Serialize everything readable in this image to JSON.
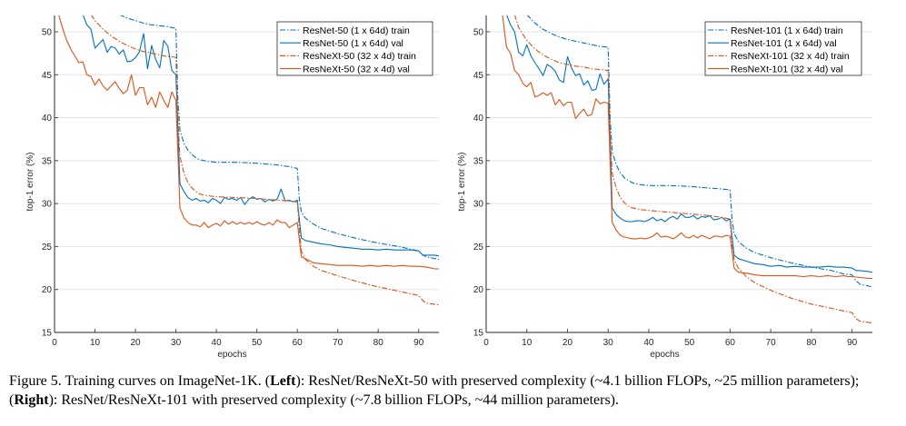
{
  "chart_data": [
    {
      "type": "line",
      "panel": "left",
      "xlabel": "epochs",
      "ylabel": "top-1 error (%)",
      "xlim": [
        0,
        95
      ],
      "ylim": [
        15,
        52
      ],
      "xticks": [
        0,
        10,
        20,
        30,
        40,
        50,
        60,
        70,
        80,
        90
      ],
      "yticks": [
        15,
        20,
        25,
        30,
        35,
        40,
        45,
        50
      ],
      "grid": "horizontal",
      "legend_position": "top-right",
      "series": [
        {
          "name": "ResNet-50 (1 x 64d) train",
          "color": "#0072BD",
          "style": "dashdot",
          "x": [
            16,
            18,
            20,
            22,
            24,
            26,
            28,
            29,
            30,
            30.5,
            31,
            32,
            33,
            34,
            35,
            36,
            38,
            40,
            45,
            50,
            55,
            58,
            59,
            60,
            60.5,
            61,
            62,
            64,
            66,
            70,
            75,
            80,
            85,
            88,
            90,
            91,
            92,
            95
          ],
          "y": [
            52.0,
            51.6,
            51.3,
            51.0,
            50.8,
            50.7,
            50.6,
            50.5,
            50.4,
            42.0,
            38.5,
            37.0,
            36.2,
            35.7,
            35.3,
            35.1,
            34.9,
            34.8,
            34.8,
            34.7,
            34.5,
            34.3,
            34.2,
            34.1,
            30.5,
            29.0,
            28.3,
            27.6,
            27.1,
            26.5,
            25.9,
            25.4,
            25.0,
            24.7,
            24.5,
            24.0,
            23.8,
            23.5
          ]
        },
        {
          "name": "ResNet-50 (1 x 64d) val",
          "color": "#0072BD",
          "style": "solid",
          "x": [
            7,
            8,
            9,
            10,
            11,
            12,
            13,
            14,
            15,
            16,
            17,
            18,
            19,
            20,
            21,
            22,
            23,
            24,
            25,
            26,
            27,
            28,
            29,
            30,
            31,
            32,
            33,
            34,
            35,
            36,
            37,
            38,
            39,
            40,
            41,
            42,
            43,
            44,
            45,
            46,
            47,
            48,
            49,
            50,
            51,
            52,
            53,
            54,
            55,
            56,
            57,
            58,
            59,
            60,
            61,
            62,
            64,
            66,
            68,
            70,
            72,
            74,
            76,
            78,
            80,
            82,
            84,
            86,
            88,
            90,
            91,
            92,
            94,
            95
          ],
          "y": [
            52.0,
            50.8,
            50.3,
            48.1,
            48.6,
            49.1,
            47.6,
            48.3,
            48.1,
            47.4,
            47.9,
            46.5,
            46.6,
            47.0,
            47.7,
            49.8,
            45.7,
            48.4,
            46.8,
            45.8,
            49.0,
            48.3,
            45.5,
            45.0,
            32.3,
            31.4,
            30.7,
            30.4,
            30.6,
            30.3,
            30.4,
            30.1,
            30.6,
            30.4,
            30.0,
            30.7,
            30.5,
            30.6,
            30.4,
            30.7,
            29.9,
            30.5,
            30.8,
            30.5,
            30.6,
            30.2,
            30.5,
            30.3,
            30.5,
            31.7,
            30.3,
            30.4,
            30.2,
            30.4,
            26.0,
            25.7,
            25.5,
            25.3,
            25.2,
            25.0,
            24.9,
            24.8,
            24.7,
            24.7,
            24.6,
            24.7,
            24.6,
            24.6,
            24.6,
            24.5,
            24.0,
            24.0,
            24.0,
            23.9
          ]
        },
        {
          "name": "ResNeXt-50 (32 x 4d) train",
          "color": "#D95319",
          "style": "dashdot",
          "x": [
            9,
            10,
            12,
            14,
            16,
            18,
            20,
            22,
            24,
            26,
            28,
            29,
            30,
            30.5,
            31,
            32,
            33,
            34,
            35,
            36,
            38,
            40,
            45,
            50,
            55,
            58,
            60,
            60.5,
            61,
            62,
            64,
            66,
            70,
            75,
            80,
            85,
            88,
            90,
            91,
            92,
            95
          ],
          "y": [
            52.0,
            51.3,
            50.3,
            49.5,
            48.9,
            48.4,
            48.0,
            47.7,
            47.5,
            47.3,
            47.1,
            47.1,
            47.0,
            40.0,
            35.5,
            33.5,
            32.4,
            31.8,
            31.4,
            31.1,
            30.9,
            30.8,
            30.7,
            30.6,
            30.4,
            30.3,
            30.2,
            27.0,
            24.5,
            23.5,
            22.7,
            22.2,
            21.6,
            20.9,
            20.3,
            19.8,
            19.5,
            19.3,
            18.7,
            18.4,
            18.2
          ]
        },
        {
          "name": "ResNeXt-50 (32 x 4d) val",
          "color": "#D95319",
          "style": "solid",
          "x": [
            1,
            2,
            3,
            4,
            5,
            6,
            7,
            8,
            9,
            10,
            11,
            12,
            13,
            14,
            15,
            16,
            17,
            18,
            19,
            20,
            21,
            22,
            23,
            24,
            25,
            26,
            27,
            28,
            29,
            30,
            31,
            32,
            33,
            34,
            35,
            36,
            37,
            38,
            39,
            40,
            41,
            42,
            43,
            44,
            45,
            46,
            47,
            48,
            49,
            50,
            51,
            52,
            53,
            54,
            55,
            56,
            57,
            58,
            59,
            60,
            61,
            62,
            64,
            66,
            68,
            70,
            72,
            74,
            76,
            78,
            80,
            82,
            84,
            86,
            88,
            90,
            92,
            94,
            95
          ],
          "y": [
            52.0,
            50.4,
            49.0,
            48.0,
            47.2,
            46.4,
            46.5,
            45.0,
            44.8,
            43.8,
            44.5,
            43.7,
            43.2,
            43.7,
            44.2,
            43.4,
            42.8,
            43.2,
            45.0,
            42.6,
            43.5,
            43.5,
            41.5,
            42.4,
            41.2,
            43.0,
            42.0,
            41.2,
            43.0,
            42.0,
            29.5,
            28.3,
            27.8,
            27.5,
            27.5,
            27.3,
            27.8,
            27.2,
            27.5,
            27.7,
            27.4,
            28.0,
            27.6,
            27.9,
            27.6,
            27.8,
            27.6,
            27.8,
            27.6,
            27.9,
            27.6,
            27.5,
            27.8,
            27.5,
            28.1,
            27.8,
            27.8,
            27.2,
            27.5,
            27.8,
            23.8,
            23.6,
            23.1,
            23.0,
            22.9,
            22.8,
            22.8,
            22.8,
            22.7,
            22.8,
            22.7,
            22.8,
            22.7,
            22.8,
            22.7,
            22.7,
            22.6,
            22.4,
            22.4
          ]
        }
      ]
    },
    {
      "type": "line",
      "panel": "right",
      "xlabel": "epochs",
      "ylabel": "top-1 error (%)",
      "xlim": [
        0,
        95
      ],
      "ylim": [
        15,
        52
      ],
      "xticks": [
        0,
        10,
        20,
        30,
        40,
        50,
        60,
        70,
        80,
        90
      ],
      "yticks": [
        15,
        20,
        25,
        30,
        35,
        40,
        45,
        50
      ],
      "grid": "horizontal",
      "legend_position": "top-right",
      "series": [
        {
          "name": "ResNet-101 (1 x 64d) train",
          "color": "#0072BD",
          "style": "dashdot",
          "x": [
            10,
            12,
            14,
            16,
            18,
            20,
            22,
            24,
            26,
            28,
            30,
            30.5,
            31,
            32,
            33,
            34,
            35,
            36,
            38,
            40,
            45,
            50,
            55,
            58,
            60,
            60.5,
            61,
            62,
            64,
            66,
            70,
            75,
            80,
            85,
            88,
            90,
            91,
            92,
            95
          ],
          "y": [
            52.0,
            51.0,
            50.3,
            49.8,
            49.4,
            49.1,
            48.9,
            48.7,
            48.5,
            48.3,
            48.2,
            40.0,
            36.0,
            34.5,
            33.6,
            33.0,
            32.7,
            32.4,
            32.2,
            32.1,
            32.1,
            32.0,
            31.8,
            31.7,
            31.6,
            28.0,
            26.5,
            25.6,
            24.8,
            24.3,
            23.7,
            23.1,
            22.6,
            22.2,
            21.8,
            21.7,
            21.0,
            20.6,
            20.3
          ]
        },
        {
          "name": "ResNet-101 (1 x 64d) val",
          "color": "#0072BD",
          "style": "solid",
          "x": [
            5,
            6,
            7,
            8,
            9,
            10,
            11,
            12,
            13,
            14,
            15,
            16,
            17,
            18,
            19,
            20,
            21,
            22,
            23,
            24,
            25,
            26,
            27,
            28,
            29,
            30,
            31,
            32,
            33,
            34,
            35,
            36,
            37,
            38,
            39,
            40,
            41,
            42,
            43,
            44,
            45,
            46,
            47,
            48,
            49,
            50,
            51,
            52,
            53,
            54,
            55,
            56,
            57,
            58,
            59,
            60,
            61,
            62,
            64,
            66,
            68,
            70,
            72,
            74,
            76,
            78,
            80,
            82,
            84,
            86,
            88,
            90,
            91,
            92,
            94,
            95
          ],
          "y": [
            52.0,
            50.8,
            50.0,
            47.6,
            47.2,
            48.5,
            47.2,
            46.4,
            45.7,
            44.9,
            46.2,
            45.9,
            45.4,
            44.4,
            44.1,
            47.1,
            45.8,
            44.9,
            45.1,
            43.8,
            44.3,
            43.2,
            43.3,
            45.1,
            43.9,
            44.5,
            29.5,
            28.7,
            28.3,
            28.0,
            27.9,
            27.9,
            28.0,
            28.0,
            27.9,
            28.1,
            28.4,
            28.0,
            28.2,
            27.9,
            28.3,
            28.5,
            28.2,
            28.8,
            28.4,
            28.4,
            28.6,
            28.2,
            28.5,
            28.4,
            28.6,
            28.1,
            28.2,
            28.4,
            28.0,
            28.2,
            24.0,
            23.6,
            23.3,
            23.0,
            22.9,
            22.7,
            22.8,
            22.6,
            22.7,
            22.6,
            22.6,
            22.6,
            22.7,
            22.6,
            22.6,
            22.5,
            22.2,
            22.2,
            22.1,
            22.0
          ]
        },
        {
          "name": "ResNeXt-101 (32 x 4d) train",
          "color": "#D95319",
          "style": "dashdot",
          "x": [
            7,
            8,
            10,
            12,
            14,
            16,
            18,
            20,
            22,
            24,
            26,
            28,
            30,
            30.5,
            31,
            32,
            33,
            34,
            35,
            36,
            38,
            40,
            45,
            50,
            55,
            58,
            60,
            60.5,
            61,
            62,
            64,
            66,
            70,
            75,
            80,
            85,
            88,
            90,
            91,
            92,
            95
          ],
          "y": [
            52.0,
            50.5,
            49.0,
            48.0,
            47.3,
            46.8,
            46.4,
            46.2,
            46.0,
            45.9,
            45.7,
            45.6,
            45.5,
            38.0,
            33.5,
            31.8,
            30.7,
            30.1,
            29.7,
            29.5,
            29.3,
            29.2,
            29.0,
            28.8,
            28.6,
            28.4,
            28.2,
            25.0,
            23.5,
            22.5,
            21.5,
            20.8,
            19.9,
            19.0,
            18.3,
            17.8,
            17.5,
            17.3,
            16.6,
            16.3,
            16.1
          ]
        },
        {
          "name": "ResNeXt-101 (32 x 4d) val",
          "color": "#D95319",
          "style": "solid",
          "x": [
            4,
            5,
            6,
            7,
            8,
            9,
            10,
            11,
            12,
            13,
            14,
            15,
            16,
            17,
            18,
            19,
            20,
            21,
            22,
            23,
            24,
            25,
            26,
            27,
            28,
            29,
            30,
            31,
            32,
            33,
            34,
            35,
            36,
            37,
            38,
            39,
            40,
            41,
            42,
            43,
            44,
            45,
            46,
            47,
            48,
            49,
            50,
            51,
            52,
            53,
            54,
            55,
            56,
            57,
            58,
            59,
            60,
            61,
            62,
            64,
            66,
            68,
            70,
            72,
            74,
            76,
            78,
            80,
            82,
            84,
            86,
            88,
            89,
            90,
            92,
            94,
            95
          ],
          "y": [
            52.0,
            48.2,
            47.5,
            45.5,
            45.0,
            44.0,
            43.6,
            44.1,
            42.4,
            42.6,
            42.9,
            42.6,
            42.9,
            41.5,
            42.1,
            41.4,
            41.8,
            41.8,
            39.9,
            40.5,
            41.0,
            40.2,
            40.4,
            42.2,
            41.6,
            41.8,
            41.7,
            27.8,
            26.9,
            26.3,
            26.1,
            26.0,
            25.9,
            25.9,
            26.0,
            25.9,
            26.0,
            26.2,
            26.6,
            26.1,
            26.2,
            26.1,
            25.9,
            26.2,
            26.6,
            26.1,
            26.0,
            26.3,
            26.0,
            26.3,
            26.1,
            25.9,
            26.2,
            26.2,
            26.1,
            26.3,
            26.2,
            22.5,
            22.0,
            21.9,
            21.7,
            21.6,
            21.6,
            21.6,
            21.6,
            21.6,
            21.5,
            21.6,
            21.5,
            21.6,
            21.5,
            21.6,
            21.5,
            21.5,
            21.4,
            21.3,
            21.3
          ]
        }
      ]
    }
  ],
  "caption": {
    "prefix": "Figure 5. Training curves on ImageNet-1K. (",
    "left_bold": "Left",
    "left_text": "): ResNet/ResNeXt-50 with preserved complexity (~4.1 billion FLOPs, ~25 million parameters); (",
    "right_bold": "Right",
    "right_text": "): ResNet/ResNeXt-101 with preserved complexity (~7.8 billion FLOPs, ~44 million parameters)."
  }
}
